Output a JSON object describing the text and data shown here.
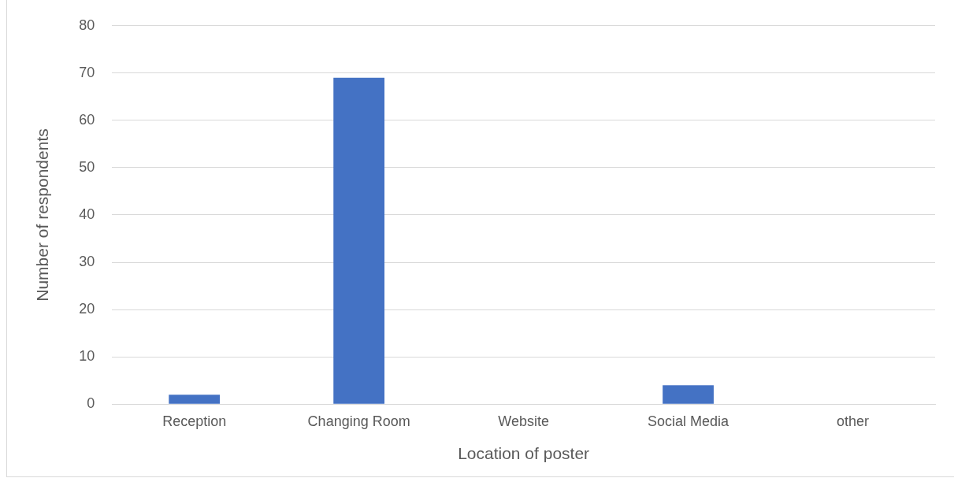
{
  "chart_data": {
    "type": "bar",
    "xlabel": "Location of poster",
    "ylabel": "Number of respondents",
    "categories": [
      "Reception",
      "Changing Room",
      "Website",
      "Social Media",
      "other"
    ],
    "values": [
      2,
      69,
      0,
      4,
      0
    ],
    "color": "#4472c4",
    "ylim": [
      0,
      80
    ],
    "yticks": [
      0,
      10,
      20,
      30,
      40,
      50,
      60,
      70,
      80
    ],
    "grid": "y",
    "legend": false
  }
}
